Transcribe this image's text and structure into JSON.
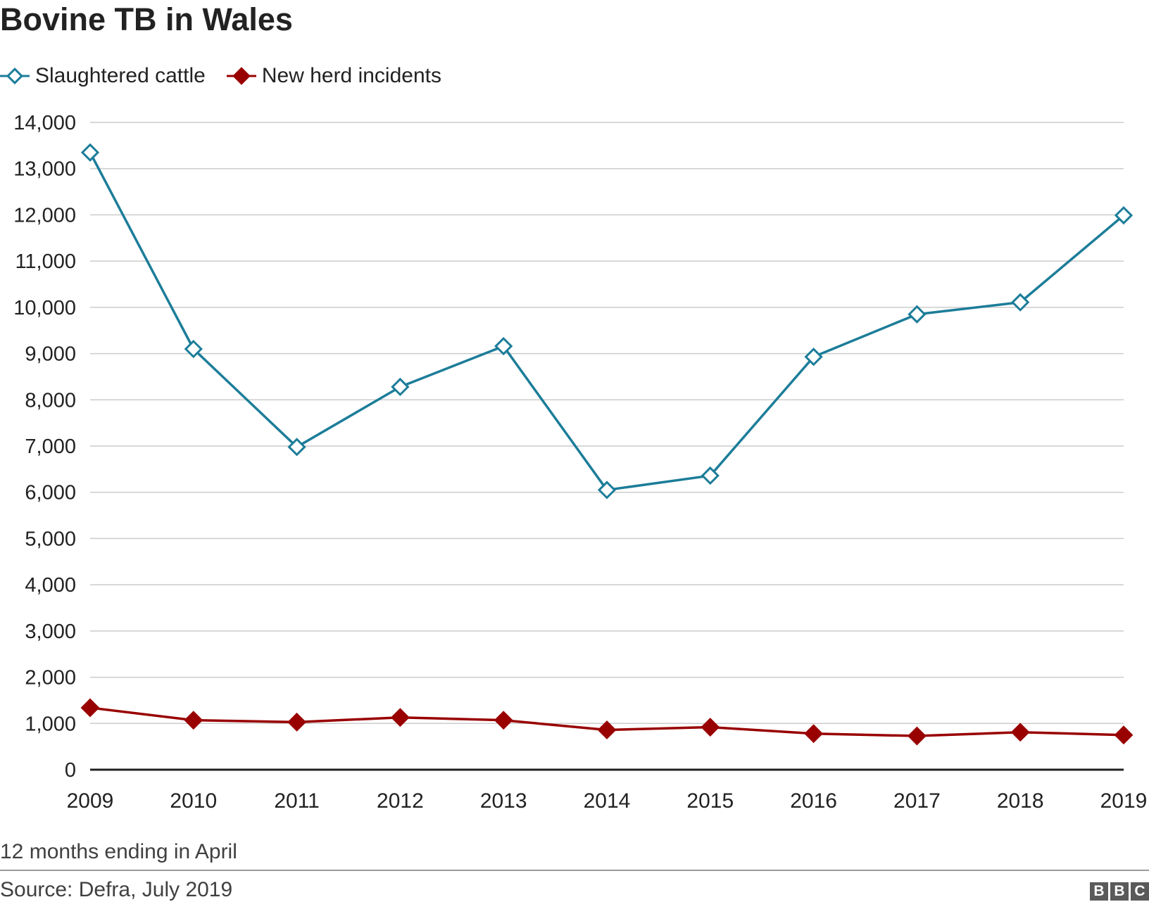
{
  "chart_data": {
    "type": "line",
    "title": "Bovine TB in Wales",
    "categories": [
      "2009",
      "2010",
      "2011",
      "2012",
      "2013",
      "2014",
      "2015",
      "2016",
      "2017",
      "2018",
      "2019"
    ],
    "y_tick_labels": [
      "0",
      "1,000",
      "2,000",
      "3,000",
      "4,000",
      "5,000",
      "6,000",
      "7,000",
      "8,000",
      "9,000",
      "10,000",
      "11,000",
      "12,000",
      "13,000",
      "14,000"
    ],
    "ylim": [
      0,
      14000
    ],
    "grid": true,
    "legend_position": "top-left",
    "series": [
      {
        "name": "Slaughtered cattle",
        "color": "#1c7d99",
        "marker": "hollow-diamond",
        "values": [
          13350,
          9100,
          6980,
          8280,
          9160,
          6050,
          6360,
          8930,
          9850,
          10110,
          11990
        ]
      },
      {
        "name": "New herd incidents",
        "color": "#990000",
        "marker": "filled-diamond",
        "values": [
          1340,
          1070,
          1030,
          1130,
          1070,
          860,
          920,
          780,
          730,
          810,
          750
        ]
      }
    ],
    "xlabel": "",
    "ylabel": ""
  },
  "note": "12 months ending in April",
  "source": "Source: Defra, July 2019",
  "logo": [
    "B",
    "B",
    "C"
  ]
}
